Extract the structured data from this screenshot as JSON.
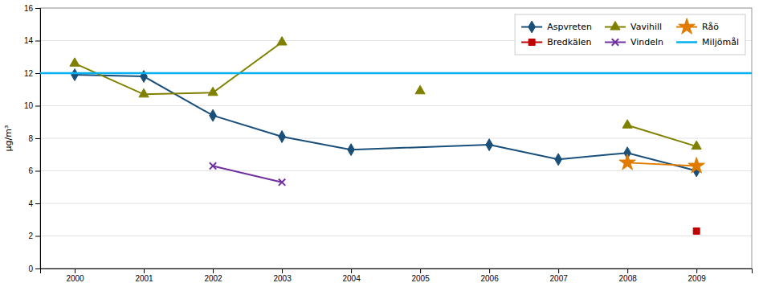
{
  "chart_data": {
    "type": "line",
    "ylabel": "μg/m³",
    "xlim": [
      1999.5,
      2009.8
    ],
    "xticks": [
      2000,
      2001,
      2002,
      2003,
      2004,
      2005,
      2006,
      2007,
      2008,
      2009
    ],
    "ylim": [
      0,
      16
    ],
    "yticks": [
      0,
      2,
      4,
      6,
      8,
      10,
      12,
      14,
      16
    ],
    "grid": true,
    "legend": "top-right",
    "series": [
      {
        "name": "Aspvreten",
        "color": "#1a4f7a",
        "marker": "diamond",
        "x": [
          2000,
          2001,
          2002,
          2003,
          2004,
          2006,
          2007,
          2008,
          2009
        ],
        "values": [
          11.9,
          11.8,
          9.4,
          8.1,
          7.3,
          7.6,
          6.7,
          7.1,
          6.0
        ]
      },
      {
        "name": "Vavihill",
        "color": "#808000",
        "marker": "triangle",
        "x": [
          2000,
          2001,
          2002,
          2003,
          2004,
          2005,
          2006,
          2007,
          2008,
          2009
        ],
        "values": [
          12.6,
          10.7,
          10.8,
          13.9,
          null,
          10.9,
          null,
          null,
          8.8,
          7.5
        ]
      },
      {
        "name": "Råö",
        "color": "#e07b00",
        "marker": "star",
        "x": [
          2008,
          2009
        ],
        "values": [
          6.5,
          6.3
        ]
      },
      {
        "name": "Bredkälen",
        "color": "#c00000",
        "marker": "square",
        "x": [
          2009
        ],
        "values": [
          2.3
        ]
      },
      {
        "name": "Vindeln",
        "color": "#7030a0",
        "marker": "x",
        "x": [
          2002,
          2003
        ],
        "values": [
          6.3,
          5.3
        ]
      },
      {
        "name": "Miljömål",
        "color": "#00b0f0",
        "type": "hline",
        "values": [
          12.0
        ]
      }
    ]
  }
}
